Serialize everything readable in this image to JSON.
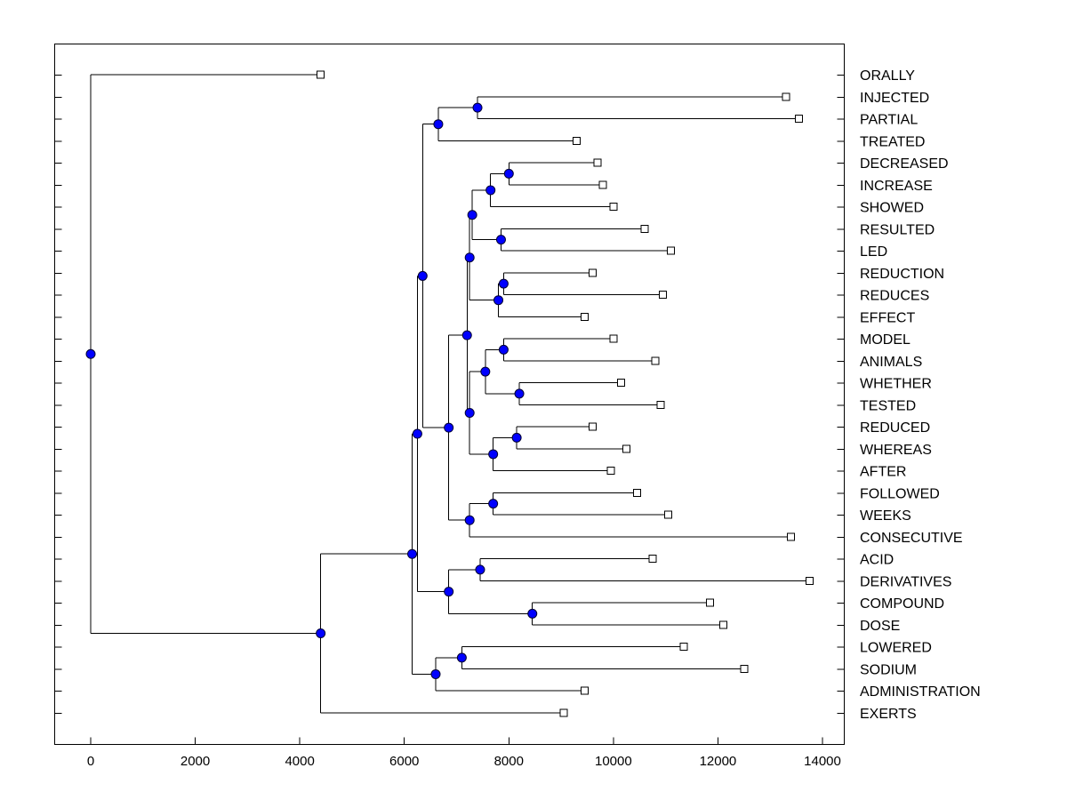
{
  "chart_data": {
    "type": "dendrogram",
    "title": "",
    "xlabel": "",
    "ylabel": "",
    "xlim": [
      -900,
      14500
    ],
    "x_ticks": [
      0,
      2000,
      4000,
      6000,
      8000,
      10000,
      12000,
      14000
    ],
    "x_tick_labels": [
      "0",
      "2000",
      "4000",
      "6000",
      "8000",
      "10000",
      "12000",
      "14000"
    ],
    "leaves": [
      {
        "label": "ORALLY",
        "value": 4400
      },
      {
        "label": "INJECTED",
        "value": 13300
      },
      {
        "label": "PARTIAL",
        "value": 13550
      },
      {
        "label": "TREATED",
        "value": 9300
      },
      {
        "label": "DECREASED",
        "value": 9700
      },
      {
        "label": "INCREASE",
        "value": 9800
      },
      {
        "label": "SHOWED",
        "value": 10000
      },
      {
        "label": "RESULTED",
        "value": 10600
      },
      {
        "label": "LED",
        "value": 11100
      },
      {
        "label": "REDUCTION",
        "value": 9600
      },
      {
        "label": "REDUCES",
        "value": 10950
      },
      {
        "label": "EFFECT",
        "value": 9450
      },
      {
        "label": "MODEL",
        "value": 10000
      },
      {
        "label": "ANIMALS",
        "value": 10800
      },
      {
        "label": "WHETHER",
        "value": 10150
      },
      {
        "label": "TESTED",
        "value": 10900
      },
      {
        "label": "REDUCED",
        "value": 9600
      },
      {
        "label": "WHEREAS",
        "value": 10250
      },
      {
        "label": "AFTER",
        "value": 9950
      },
      {
        "label": "FOLLOWED",
        "value": 10450
      },
      {
        "label": "WEEKS",
        "value": 11050
      },
      {
        "label": "CONSECUTIVE",
        "value": 13400
      },
      {
        "label": "ACID",
        "value": 10750
      },
      {
        "label": "DERIVATIVES",
        "value": 13750
      },
      {
        "label": "COMPOUND",
        "value": 11850
      },
      {
        "label": "DOSE",
        "value": 12100
      },
      {
        "label": "LOWERED",
        "value": 11350
      },
      {
        "label": "SODIUM",
        "value": 12500
      },
      {
        "label": "ADMINISTRATION",
        "value": 9450
      },
      {
        "label": "EXERTS",
        "value": 9050
      }
    ],
    "merges": [
      {
        "id": "m1",
        "value": 7400,
        "children": [
          "INJECTED",
          "PARTIAL"
        ]
      },
      {
        "id": "m2",
        "value": 6650,
        "children": [
          "m1",
          "TREATED"
        ]
      },
      {
        "id": "m3",
        "value": 8000,
        "children": [
          "DECREASED",
          "INCREASE"
        ]
      },
      {
        "id": "m4",
        "value": 7650,
        "children": [
          "m3",
          "SHOWED"
        ]
      },
      {
        "id": "m5",
        "value": 7850,
        "children": [
          "RESULTED",
          "LED"
        ]
      },
      {
        "id": "m6",
        "value": 7300,
        "children": [
          "m4",
          "m5"
        ]
      },
      {
        "id": "m7",
        "value": 7900,
        "children": [
          "REDUCTION",
          "REDUCES"
        ]
      },
      {
        "id": "m8",
        "value": 7800,
        "children": [
          "m7",
          "EFFECT"
        ]
      },
      {
        "id": "m9",
        "value": 7250,
        "children": [
          "m6",
          "m8"
        ]
      },
      {
        "id": "m10",
        "value": 7900,
        "children": [
          "MODEL",
          "ANIMALS"
        ]
      },
      {
        "id": "m11",
        "value": 8200,
        "children": [
          "WHETHER",
          "TESTED"
        ]
      },
      {
        "id": "m12",
        "value": 7550,
        "children": [
          "m10",
          "m11"
        ]
      },
      {
        "id": "m13",
        "value": 8150,
        "children": [
          "REDUCED",
          "WHEREAS"
        ]
      },
      {
        "id": "m14",
        "value": 7700,
        "children": [
          "m13",
          "AFTER"
        ]
      },
      {
        "id": "m15",
        "value": 7250,
        "children": [
          "m12",
          "m14"
        ]
      },
      {
        "id": "m16",
        "value": 7200,
        "children": [
          "m9",
          "m15"
        ]
      },
      {
        "id": "m17",
        "value": 7700,
        "children": [
          "FOLLOWED",
          "WEEKS"
        ]
      },
      {
        "id": "m18",
        "value": 7250,
        "children": [
          "m17",
          "CONSECUTIVE"
        ]
      },
      {
        "id": "m19",
        "value": 6850,
        "children": [
          "m16",
          "m18"
        ]
      },
      {
        "id": "m20",
        "value": 6350,
        "children": [
          "m2",
          "m19"
        ]
      },
      {
        "id": "m21",
        "value": 7450,
        "children": [
          "ACID",
          "DERIVATIVES"
        ]
      },
      {
        "id": "m22",
        "value": 8450,
        "children": [
          "COMPOUND",
          "DOSE"
        ]
      },
      {
        "id": "m23",
        "value": 6850,
        "children": [
          "m21",
          "m22"
        ]
      },
      {
        "id": "m24",
        "value": 6250,
        "children": [
          "m20",
          "m23"
        ]
      },
      {
        "id": "m25",
        "value": 7100,
        "children": [
          "LOWERED",
          "SODIUM"
        ]
      },
      {
        "id": "m26",
        "value": 6600,
        "children": [
          "m25",
          "ADMINISTRATION"
        ]
      },
      {
        "id": "m27",
        "value": 6150,
        "children": [
          "m24",
          "m26"
        ]
      },
      {
        "id": "m28",
        "value": 4400,
        "children": [
          "m27",
          "EXERTS"
        ]
      },
      {
        "id": "m29",
        "value": 0,
        "children": [
          "ORALLY",
          "m28"
        ]
      }
    ],
    "root": "m29",
    "grid": false,
    "legend": "none",
    "colors": {
      "node": "#0000ff",
      "leaf": "#ffffff",
      "line": "#000000"
    }
  }
}
